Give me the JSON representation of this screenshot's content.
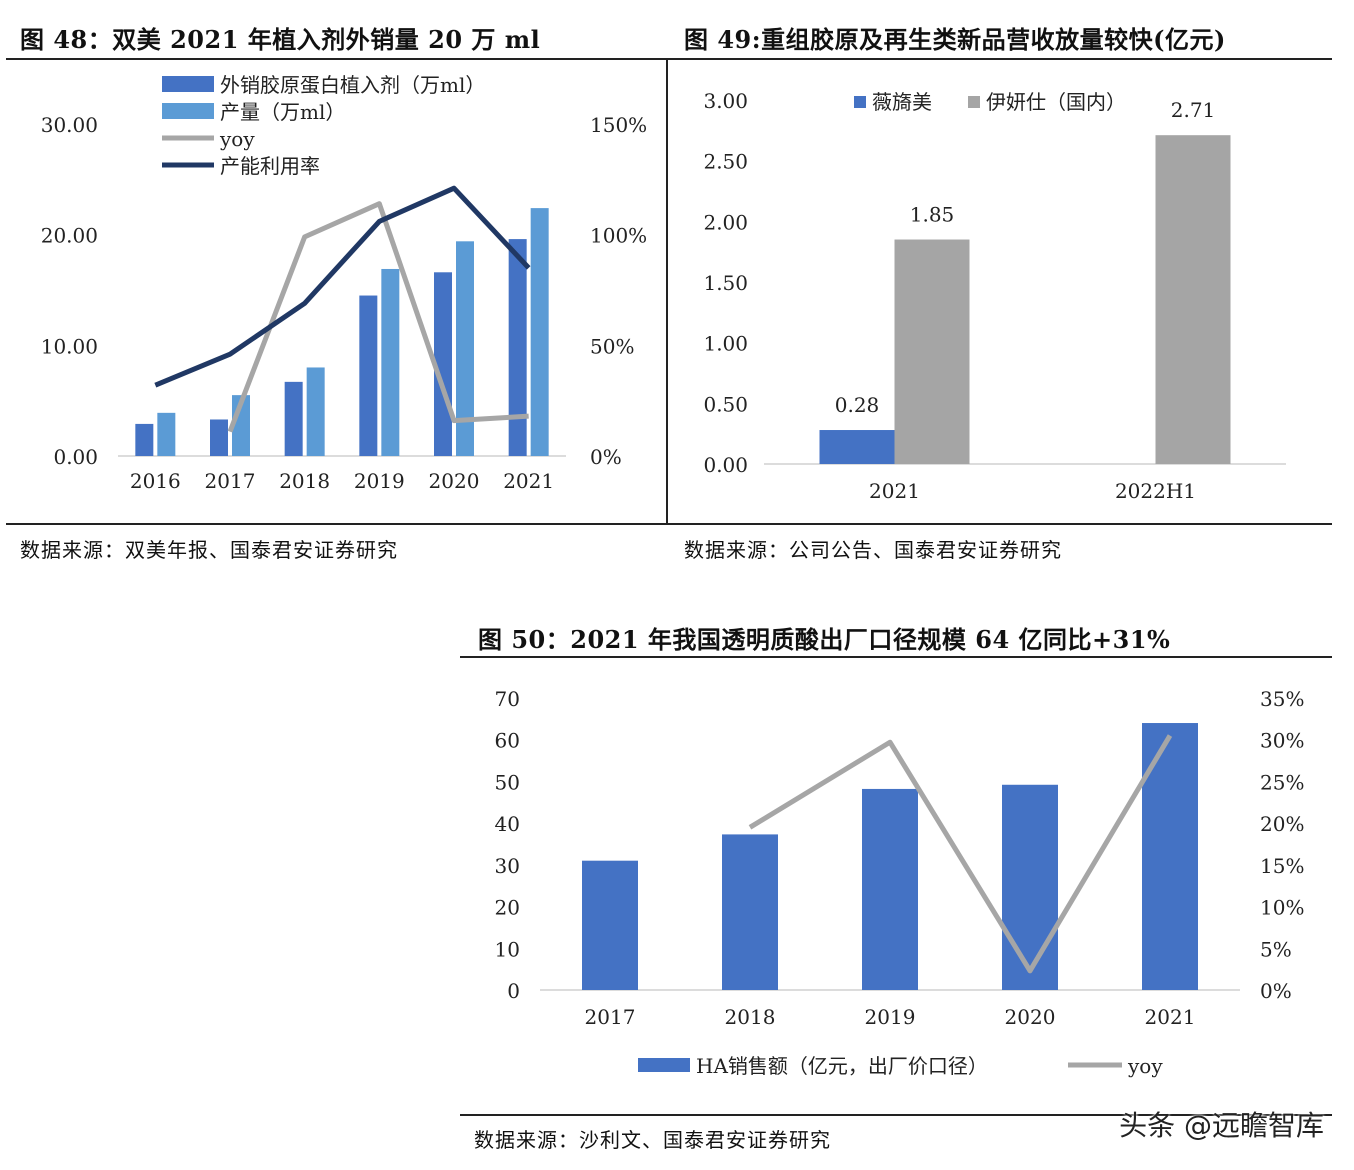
{
  "figures": [
    {
      "title": "图 48：双美 2021 年植入剂外销量 20 万 ml",
      "source": "数据来源：双美年报、国泰君安证券研究"
    },
    {
      "title": "图 49:重组胶原及再生类新品营收放量较快(亿元)",
      "source": "数据来源：公司公告、国泰君安证券研究"
    },
    {
      "title": "图 50：2021 年我国透明质酸出厂口径规模 64 亿同比+31%",
      "source": "数据来源：沙利文、国泰君安证券研究"
    }
  ],
  "watermark": "头条 @远瞻智库",
  "chart_data": [
    {
      "type": "bar",
      "categories": [
        "2016",
        "2017",
        "2018",
        "2019",
        "2020",
        "2021"
      ],
      "series": [
        {
          "name": "外销胶原蛋白植入剂（万ml）",
          "kind": "bar",
          "axis": "left",
          "color": "#4472c4",
          "values": [
            2.9,
            3.3,
            6.7,
            14.5,
            16.6,
            19.6
          ]
        },
        {
          "name": "产量（万ml）",
          "kind": "bar",
          "axis": "left",
          "color": "#5b9bd5",
          "values": [
            3.9,
            5.5,
            8.0,
            16.9,
            19.4,
            22.4
          ]
        },
        {
          "name": "yoy",
          "kind": "line",
          "axis": "right",
          "color": "#a6a6a6",
          "values": [
            null,
            0.11,
            0.99,
            1.14,
            0.16,
            0.18
          ]
        },
        {
          "name": "产能利用率",
          "kind": "line",
          "axis": "right",
          "color": "#203864",
          "values": [
            0.32,
            0.46,
            0.69,
            1.06,
            1.21,
            0.85
          ]
        }
      ],
      "yticks": [
        "0.00",
        "10.00",
        "20.00",
        "30.00"
      ],
      "ylim": [
        0,
        30
      ],
      "y2ticks": [
        "0%",
        "50%",
        "100%",
        "150%"
      ],
      "y2lim": [
        0,
        1.5
      ],
      "legend_position": "top-left"
    },
    {
      "type": "bar",
      "categories": [
        "2021",
        "2022H1"
      ],
      "series": [
        {
          "name": "薇旖美",
          "color": "#4472c4",
          "values": [
            0.28,
            null
          ],
          "labels": [
            "0.28",
            ""
          ]
        },
        {
          "name": "伊妍仕（国内）",
          "color": "#a5a5a5",
          "values": [
            1.85,
            2.71
          ],
          "labels": [
            "1.85",
            "2.71"
          ]
        }
      ],
      "yticks": [
        "0.00",
        "0.50",
        "1.00",
        "1.50",
        "2.00",
        "2.50",
        "3.00"
      ],
      "ylim": [
        0,
        3
      ],
      "legend_position": "top"
    },
    {
      "type": "bar",
      "categories": [
        "2017",
        "2018",
        "2019",
        "2020",
        "2021"
      ],
      "series": [
        {
          "name": "HA销售额（亿元，出厂价口径）",
          "kind": "bar",
          "axis": "left",
          "color": "#4472c4",
          "values": [
            31,
            37.3,
            48.2,
            49.2,
            64
          ]
        },
        {
          "name": "yoy",
          "kind": "line",
          "axis": "right",
          "color": "#a6a6a6",
          "values": [
            null,
            0.195,
            0.297,
            0.023,
            0.305
          ]
        }
      ],
      "yticks": [
        "0",
        "10",
        "20",
        "30",
        "40",
        "50",
        "60",
        "70"
      ],
      "ylim": [
        0,
        70
      ],
      "y2ticks": [
        "0%",
        "5%",
        "10%",
        "15%",
        "20%",
        "25%",
        "30%",
        "35%"
      ],
      "y2lim": [
        0,
        0.35
      ],
      "legend_position": "bottom"
    }
  ]
}
